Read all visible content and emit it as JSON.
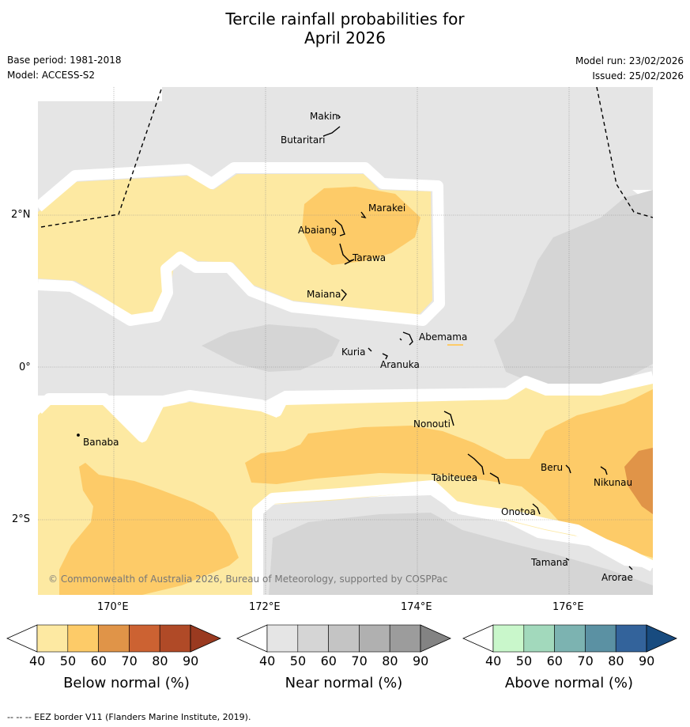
{
  "header": {
    "title_line1": "Tercile rainfall probabilities for",
    "title_line2": "April 2026",
    "base_period": "Base period: 1981-2018",
    "model": "Model: ACCESS-S2",
    "model_run": "Model run: 23/02/2026",
    "issued": "Issued: 25/02/2026"
  },
  "map": {
    "lat_labels": [
      "2°N",
      "0°",
      "2°S"
    ],
    "lon_labels": [
      "170°E",
      "172°E",
      "174°E",
      "176°E"
    ],
    "copyright": "© Commonwealth of Australia 2026, Bureau of Meteorology, supported by COSPPac",
    "islands": [
      "Makin",
      "Butaritari",
      "Marakei",
      "Abaiang",
      "Tarawa",
      "Maiana",
      "Abemama",
      "Kuria",
      "Aranuka",
      "Nonouti",
      "Banaba",
      "Tabiteuea",
      "Beru",
      "Nikunau",
      "Onotoa",
      "Tamana",
      "Arorae"
    ]
  },
  "colorbars": [
    {
      "label": "Below normal (%)",
      "ticks": [
        "40",
        "50",
        "60",
        "70",
        "80",
        "90"
      ],
      "colors": [
        "#ffffff",
        "#fde9a2",
        "#fdcb68",
        "#e09448",
        "#cc6232",
        "#b04a27",
        "#9a3a20"
      ]
    },
    {
      "label": "Near normal (%)",
      "ticks": [
        "40",
        "50",
        "60",
        "70",
        "80",
        "90"
      ],
      "colors": [
        "#ffffff",
        "#e5e5e5",
        "#d5d5d5",
        "#c4c4c4",
        "#b0b0b0",
        "#9c9c9c",
        "#838383"
      ]
    },
    {
      "label": "Above normal (%)",
      "ticks": [
        "40",
        "50",
        "60",
        "70",
        "80",
        "90"
      ],
      "colors": [
        "#ffffff",
        "#c9f7cb",
        "#a2d9bc",
        "#7cb3b1",
        "#5b91a3",
        "#33639b",
        "#184b7f"
      ]
    }
  ],
  "footer": {
    "eez_note": "--  --  -- EEZ border V11 (Flanders Marine Institute, 2019)."
  }
}
